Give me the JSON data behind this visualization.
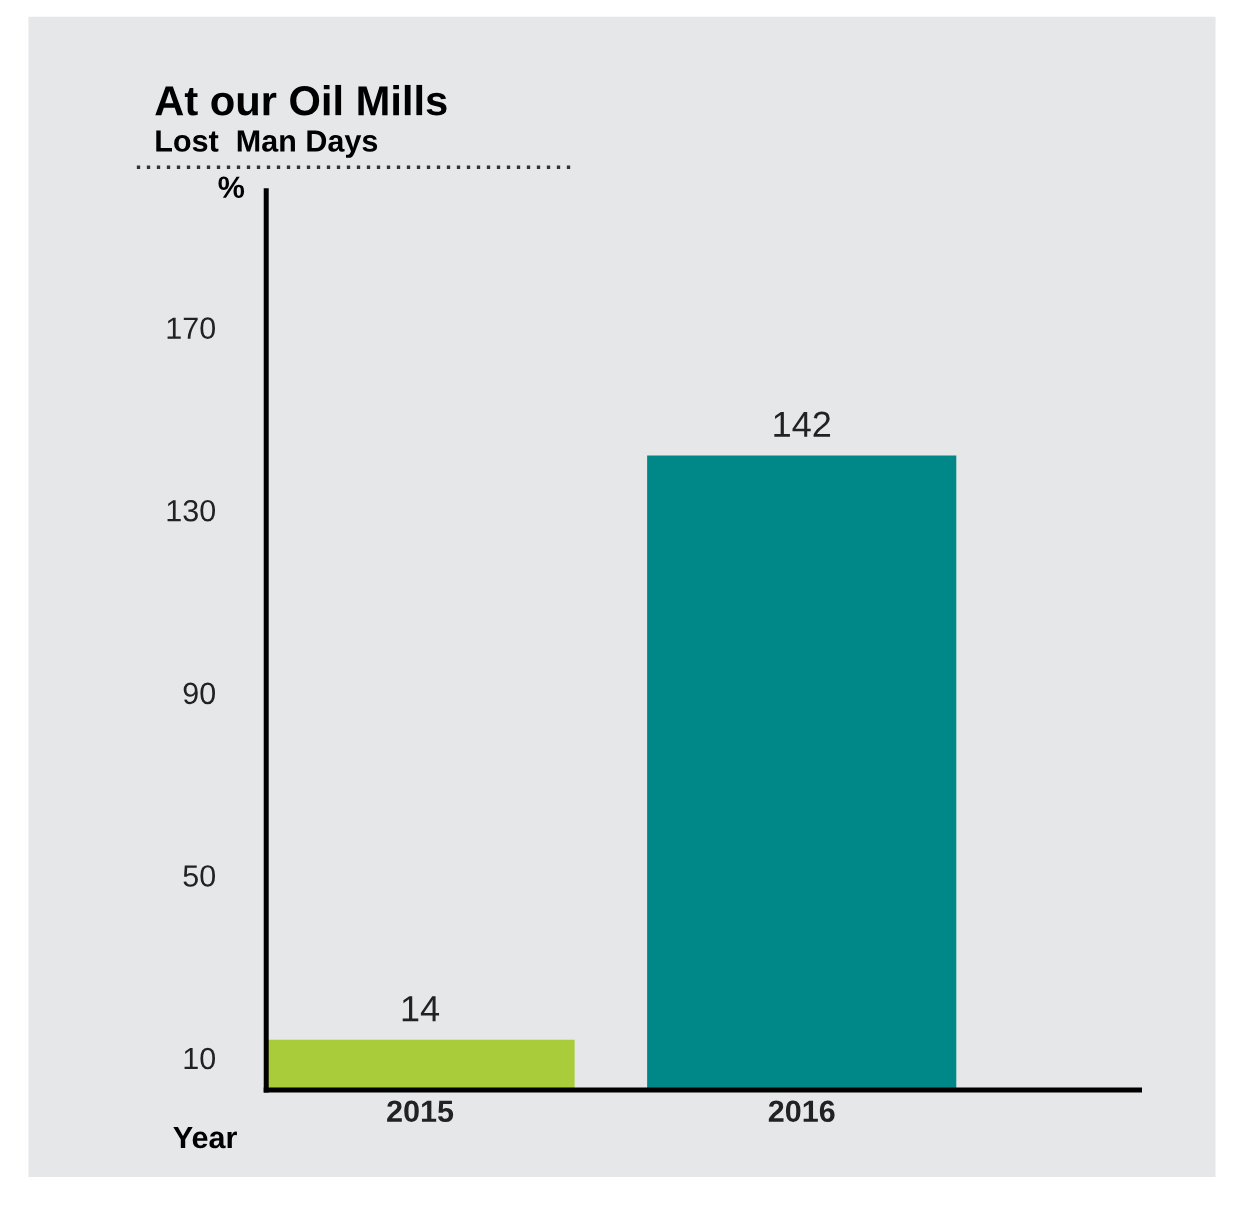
{
  "chart_data": {
    "type": "bar",
    "title": "At our Oil Mills",
    "subtitle": "Lost  Man Days",
    "xlabel": "Year",
    "ylabel": "%",
    "categories": [
      "2015",
      "2016"
    ],
    "values": [
      14,
      142
    ],
    "colors": [
      "#a8cc3a",
      "#008888"
    ],
    "ylim": [
      3,
      200
    ],
    "yticks": [
      10,
      50,
      90,
      130,
      170
    ],
    "data_labels": true,
    "grid": false,
    "legend": false
  }
}
